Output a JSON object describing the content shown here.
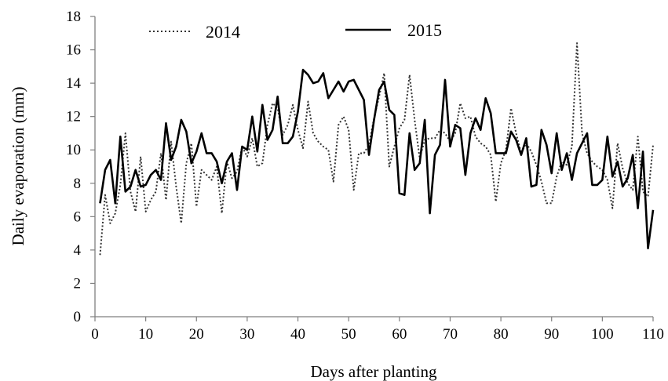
{
  "chart_data": {
    "type": "line",
    "title": "",
    "xlabel": "Days after planting",
    "ylabel": "Daily evaporation (mm)",
    "xlim": [
      0,
      110
    ],
    "ylim": [
      0,
      18
    ],
    "x_ticks": [
      0,
      10,
      20,
      30,
      40,
      50,
      60,
      70,
      80,
      90,
      100,
      110
    ],
    "y_ticks": [
      0,
      2,
      4,
      6,
      8,
      10,
      12,
      14,
      16,
      18
    ],
    "grid": false,
    "legend_position": "top",
    "series": [
      {
        "name": "2014",
        "line_style": "dotted",
        "color": "#333333",
        "x_start": 1,
        "values": [
          3.7,
          7.3,
          5.6,
          6.2,
          7.9,
          11.0,
          7.5,
          6.3,
          9.6,
          6.3,
          7.0,
          7.5,
          9.8,
          7.0,
          10.5,
          7.8,
          5.6,
          9.2,
          10.4,
          6.6,
          8.8,
          8.5,
          8.2,
          9.0,
          6.2,
          9.3,
          8.3,
          8.7,
          10.2,
          9.6,
          10.7,
          9.0,
          9.2,
          11.5,
          12.8,
          12.5,
          10.9,
          11.5,
          12.7,
          11.2,
          10.1,
          12.9,
          11.0,
          10.5,
          10.2,
          10.0,
          8.1,
          11.5,
          12.0,
          11.2,
          7.6,
          9.8,
          9.8,
          10.3,
          11.9,
          13.2,
          14.6,
          9.0,
          10.2,
          11.3,
          11.8,
          14.5,
          11.8,
          9.5,
          10.6,
          10.7,
          10.7,
          11.2,
          11.0,
          10.5,
          11.0,
          12.8,
          11.9,
          12.0,
          10.8,
          10.4,
          10.2,
          9.7,
          6.9,
          9.2,
          10.0,
          12.5,
          11.0,
          9.8,
          10.4,
          9.9,
          9.1,
          8.1,
          6.8,
          6.8,
          8.4,
          9.3,
          9.1,
          10.2,
          16.4,
          11.0,
          9.8,
          9.3,
          9.0,
          8.8,
          8.2,
          6.5,
          10.4,
          8.9,
          8.0,
          7.6,
          10.8,
          7.5,
          7.2,
          10.3
        ]
      },
      {
        "name": "2015",
        "line_style": "solid",
        "color": "#000000",
        "x_start": 1,
        "values": [
          6.8,
          8.8,
          9.4,
          6.8,
          10.8,
          7.5,
          7.8,
          8.8,
          7.8,
          7.9,
          8.5,
          8.8,
          8.2,
          11.6,
          9.4,
          10.2,
          11.8,
          11.1,
          9.2,
          9.9,
          11.0,
          9.8,
          9.8,
          9.3,
          8.0,
          9.3,
          9.8,
          7.6,
          10.2,
          10.0,
          12.0,
          9.9,
          12.7,
          10.6,
          11.2,
          13.2,
          10.4,
          10.4,
          10.8,
          12.3,
          14.8,
          14.5,
          14.0,
          14.1,
          14.6,
          13.1,
          13.6,
          14.1,
          13.5,
          14.1,
          14.2,
          13.6,
          13.0,
          9.7,
          11.8,
          13.6,
          14.1,
          12.4,
          12.1,
          7.4,
          7.3,
          11.0,
          8.8,
          9.2,
          11.8,
          6.2,
          9.7,
          10.3,
          14.2,
          10.2,
          11.5,
          11.3,
          8.5,
          11.0,
          11.9,
          11.2,
          13.1,
          12.2,
          9.8,
          9.8,
          9.8,
          11.1,
          10.6,
          9.7,
          10.7,
          7.8,
          7.9,
          11.2,
          10.3,
          8.6,
          11.0,
          8.8,
          9.8,
          8.2,
          9.8,
          10.4,
          11.0,
          7.9,
          7.9,
          8.2,
          10.8,
          8.4,
          9.3,
          7.8,
          8.3,
          9.7,
          6.5,
          9.9,
          4.1,
          6.4
        ]
      }
    ]
  }
}
